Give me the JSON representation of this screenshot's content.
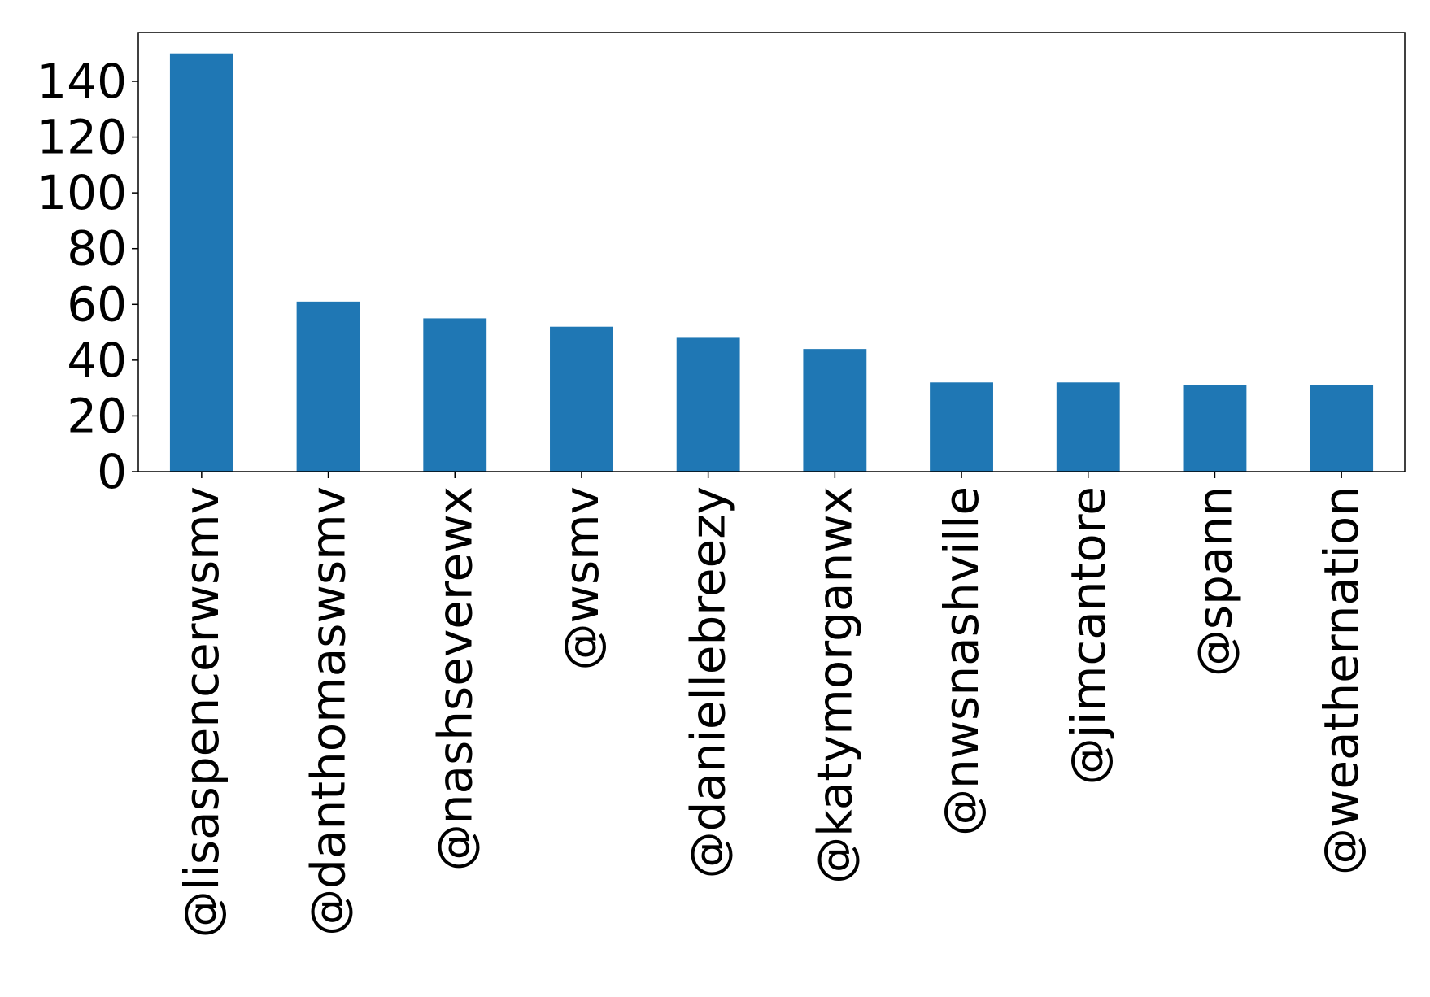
{
  "chart_data": {
    "type": "bar",
    "title": "",
    "xlabel": "",
    "ylabel": "",
    "categories": [
      "@lisaspencerwsmv",
      "@danthomaswsmv",
      "@nashseverewx",
      "@wsmv",
      "@daniellebreezy",
      "@katymorganwx",
      "@nwsnashville",
      "@jimcantore",
      "@spann",
      "@weathernation"
    ],
    "values": [
      150,
      61,
      55,
      52,
      48,
      44,
      32,
      32,
      31,
      31
    ],
    "ylim": [
      0,
      157.5
    ],
    "yticks": [
      0,
      20,
      40,
      60,
      80,
      100,
      120,
      140
    ],
    "grid": false,
    "legend": "none",
    "bar_color": "#1f77b4"
  }
}
